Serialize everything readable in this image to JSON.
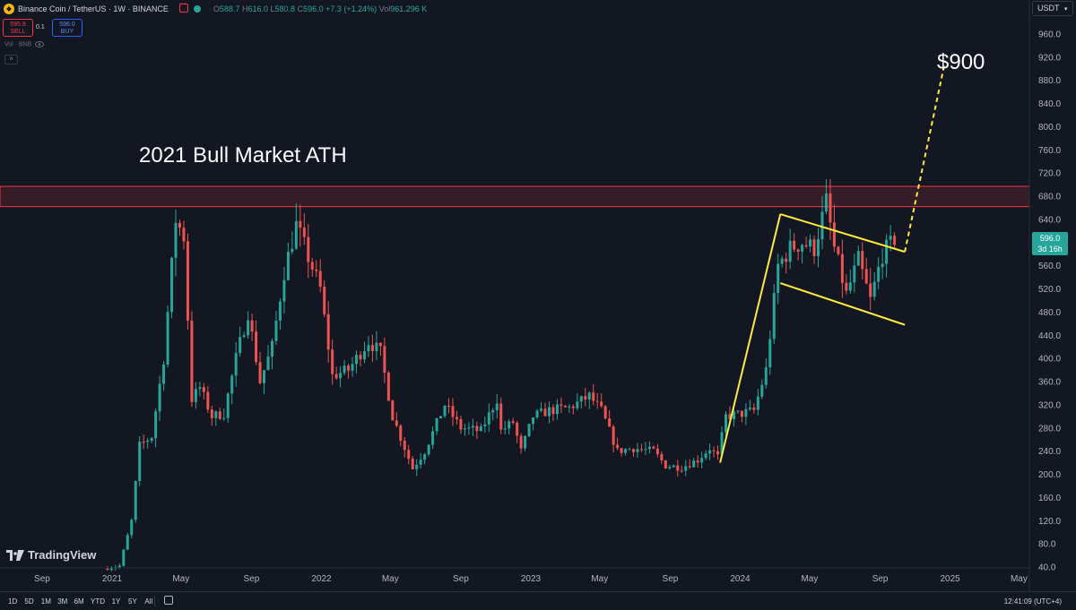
{
  "header": {
    "symbol": "Binance Coin / TetherUS · 1W · BINANCE",
    "ohlc": {
      "o_label": "O",
      "o": "588.7",
      "h_label": "H",
      "h": "616.0",
      "l_label": "L",
      "l": "580.8",
      "c_label": "C",
      "c": "596.0",
      "change": "+7.3 (+1.24%)",
      "vol_label": "Vol",
      "vol": "961.296 K"
    },
    "sell_price": "595.9",
    "sell_label": "SELL",
    "spread": "0.1",
    "buy_price": "596.0",
    "buy_label": "BUY",
    "volume_indicator": "Vol · BNB",
    "collapse_icon": "chevron-up-icon"
  },
  "currency": "USDT",
  "last_price": {
    "value": "596.0",
    "countdown": "3d 16h"
  },
  "annotations": {
    "ath": "2021 Bull Market ATH",
    "target": "$900"
  },
  "watermark": "TradingView",
  "toolbar": {
    "timeframes": [
      "1D",
      "5D",
      "1M",
      "3M",
      "6M",
      "YTD",
      "1Y",
      "5Y",
      "All"
    ],
    "clock": "12:41:09 (UTC+4)"
  },
  "colors": {
    "up": "#26a69a",
    "down": "#ef5350",
    "background": "#131722",
    "drawing": "#ffeb3b",
    "zone": "#f23645"
  },
  "chart_data": {
    "type": "candlestick",
    "title": "Binance Coin / TetherUS · 1W · BINANCE",
    "ylim": [
      40,
      980
    ],
    "ylabel": "USDT",
    "y_ticks": [
      "960.0",
      "920.0",
      "880.0",
      "840.0",
      "800.0",
      "760.0",
      "720.0",
      "680.0",
      "640.0",
      "600.0",
      "560.0",
      "520.0",
      "480.0",
      "440.0",
      "400.0",
      "360.0",
      "320.0",
      "280.0",
      "240.0",
      "200.0",
      "160.0",
      "120.0",
      "80.0",
      "40.0"
    ],
    "x_ticks": [
      {
        "label": "Sep",
        "date": "2020-09-01"
      },
      {
        "label": "2021",
        "date": "2021-01-01"
      },
      {
        "label": "May",
        "date": "2021-05-01"
      },
      {
        "label": "Sep",
        "date": "2021-09-01"
      },
      {
        "label": "2022",
        "date": "2022-01-01"
      },
      {
        "label": "May",
        "date": "2022-05-01"
      },
      {
        "label": "Sep",
        "date": "2022-09-01"
      },
      {
        "label": "2023",
        "date": "2023-01-01"
      },
      {
        "label": "May",
        "date": "2023-05-01"
      },
      {
        "label": "Sep",
        "date": "2023-09-01"
      },
      {
        "label": "2024",
        "date": "2024-01-01"
      },
      {
        "label": "May",
        "date": "2024-05-01"
      },
      {
        "label": "Sep",
        "date": "2024-09-01"
      },
      {
        "label": "2025",
        "date": "2025-01-01"
      },
      {
        "label": "May",
        "date": "2025-05-01"
      }
    ],
    "price_path": [
      [
        "2020-12-21",
        37
      ],
      [
        "2021-01-18",
        42
      ],
      [
        "2021-02-08",
        120
      ],
      [
        "2021-02-22",
        250
      ],
      [
        "2021-03-15",
        265
      ],
      [
        "2021-04-05",
        400
      ],
      [
        "2021-04-26",
        640
      ],
      [
        "2021-05-10",
        610
      ],
      [
        "2021-05-24",
        330
      ],
      [
        "2021-06-07",
        350
      ],
      [
        "2021-06-28",
        300
      ],
      [
        "2021-07-19",
        305
      ],
      [
        "2021-08-09",
        400
      ],
      [
        "2021-08-30",
        480
      ],
      [
        "2021-09-20",
        360
      ],
      [
        "2021-10-11",
        420
      ],
      [
        "2021-11-01",
        550
      ],
      [
        "2021-11-22",
        630
      ],
      [
        "2022-01-03",
        520
      ],
      [
        "2022-01-24",
        370
      ],
      [
        "2022-02-21",
        380
      ],
      [
        "2022-03-28",
        430
      ],
      [
        "2022-04-18",
        410
      ],
      [
        "2022-05-09",
        300
      ],
      [
        "2022-06-13",
        210
      ],
      [
        "2022-07-04",
        240
      ],
      [
        "2022-08-08",
        320
      ],
      [
        "2022-09-05",
        280
      ],
      [
        "2022-10-10",
        275
      ],
      [
        "2022-11-07",
        330
      ],
      [
        "2022-11-14",
        275
      ],
      [
        "2022-12-05",
        290
      ],
      [
        "2022-12-19",
        240
      ],
      [
        "2023-01-09",
        300
      ],
      [
        "2023-02-06",
        310
      ],
      [
        "2023-03-13",
        315
      ],
      [
        "2023-04-17",
        335
      ],
      [
        "2023-05-08",
        310
      ],
      [
        "2023-06-05",
        240
      ],
      [
        "2023-07-03",
        245
      ],
      [
        "2023-08-07",
        240
      ],
      [
        "2023-08-28",
        215
      ],
      [
        "2023-09-25",
        212
      ],
      [
        "2023-10-23",
        225
      ],
      [
        "2023-11-13",
        245
      ],
      [
        "2023-11-27",
        230
      ],
      [
        "2023-12-11",
        300
      ],
      [
        "2024-01-08",
        305
      ],
      [
        "2024-01-29",
        310
      ],
      [
        "2024-02-19",
        380
      ],
      [
        "2024-03-11",
        560
      ],
      [
        "2024-04-01",
        590
      ],
      [
        "2024-04-22",
        600
      ],
      [
        "2024-05-13",
        590
      ],
      [
        "2024-06-03",
        670
      ],
      [
        "2024-06-17",
        590
      ],
      [
        "2024-07-08",
        510
      ],
      [
        "2024-07-29",
        570
      ],
      [
        "2024-08-19",
        500
      ],
      [
        "2024-09-09",
        580
      ],
      [
        "2024-09-23",
        596
      ]
    ],
    "resistance_zone": [
      662,
      697
    ],
    "drawings": {
      "flagpole": [
        [
          "2023-11-27",
          220
        ],
        [
          "2024-03-11",
          649
        ]
      ],
      "flag_upper": [
        [
          "2024-03-11",
          649
        ],
        [
          "2024-10-14",
          584
        ]
      ],
      "flag_lower": [
        [
          "2024-03-11",
          530
        ],
        [
          "2024-10-14",
          458
        ]
      ],
      "projection": [
        [
          "2024-10-14",
          584
        ],
        [
          "2024-12-23",
          912
        ]
      ]
    },
    "last_price": 596.0,
    "grid": false
  }
}
